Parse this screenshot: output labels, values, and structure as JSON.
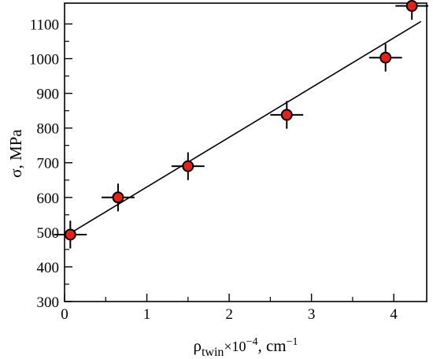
{
  "chart_data": {
    "type": "scatter",
    "xlabel": {
      "main": "ρ",
      "sub": "twin",
      "mid": "×10",
      "exp1": "−4",
      "rest": ", cm",
      "exp2": "−1"
    },
    "ylabel": "σ, MPa",
    "xlim": [
      0,
      4.4
    ],
    "ylim": [
      300,
      1160
    ],
    "xticks": [
      0,
      1,
      2,
      3,
      4
    ],
    "yticks": [
      300,
      400,
      500,
      600,
      700,
      800,
      900,
      1000,
      1100
    ],
    "points": [
      {
        "x": 0.07,
        "y": 493,
        "xerr": 0.2,
        "yerr": 40
      },
      {
        "x": 0.65,
        "y": 600,
        "xerr": 0.2,
        "yerr": 40
      },
      {
        "x": 1.5,
        "y": 690,
        "xerr": 0.2,
        "yerr": 40
      },
      {
        "x": 2.7,
        "y": 838,
        "xerr": 0.2,
        "yerr": 40
      },
      {
        "x": 3.9,
        "y": 1003,
        "xerr": 0.2,
        "yerr": 40
      },
      {
        "x": 4.22,
        "y": 1152,
        "xerr": 0.2,
        "yerr": 40
      }
    ],
    "fit_line": {
      "x": [
        0.07,
        4.33
      ],
      "y": [
        497,
        1107
      ]
    },
    "marker_color": "#e8201c",
    "grid": false
  }
}
